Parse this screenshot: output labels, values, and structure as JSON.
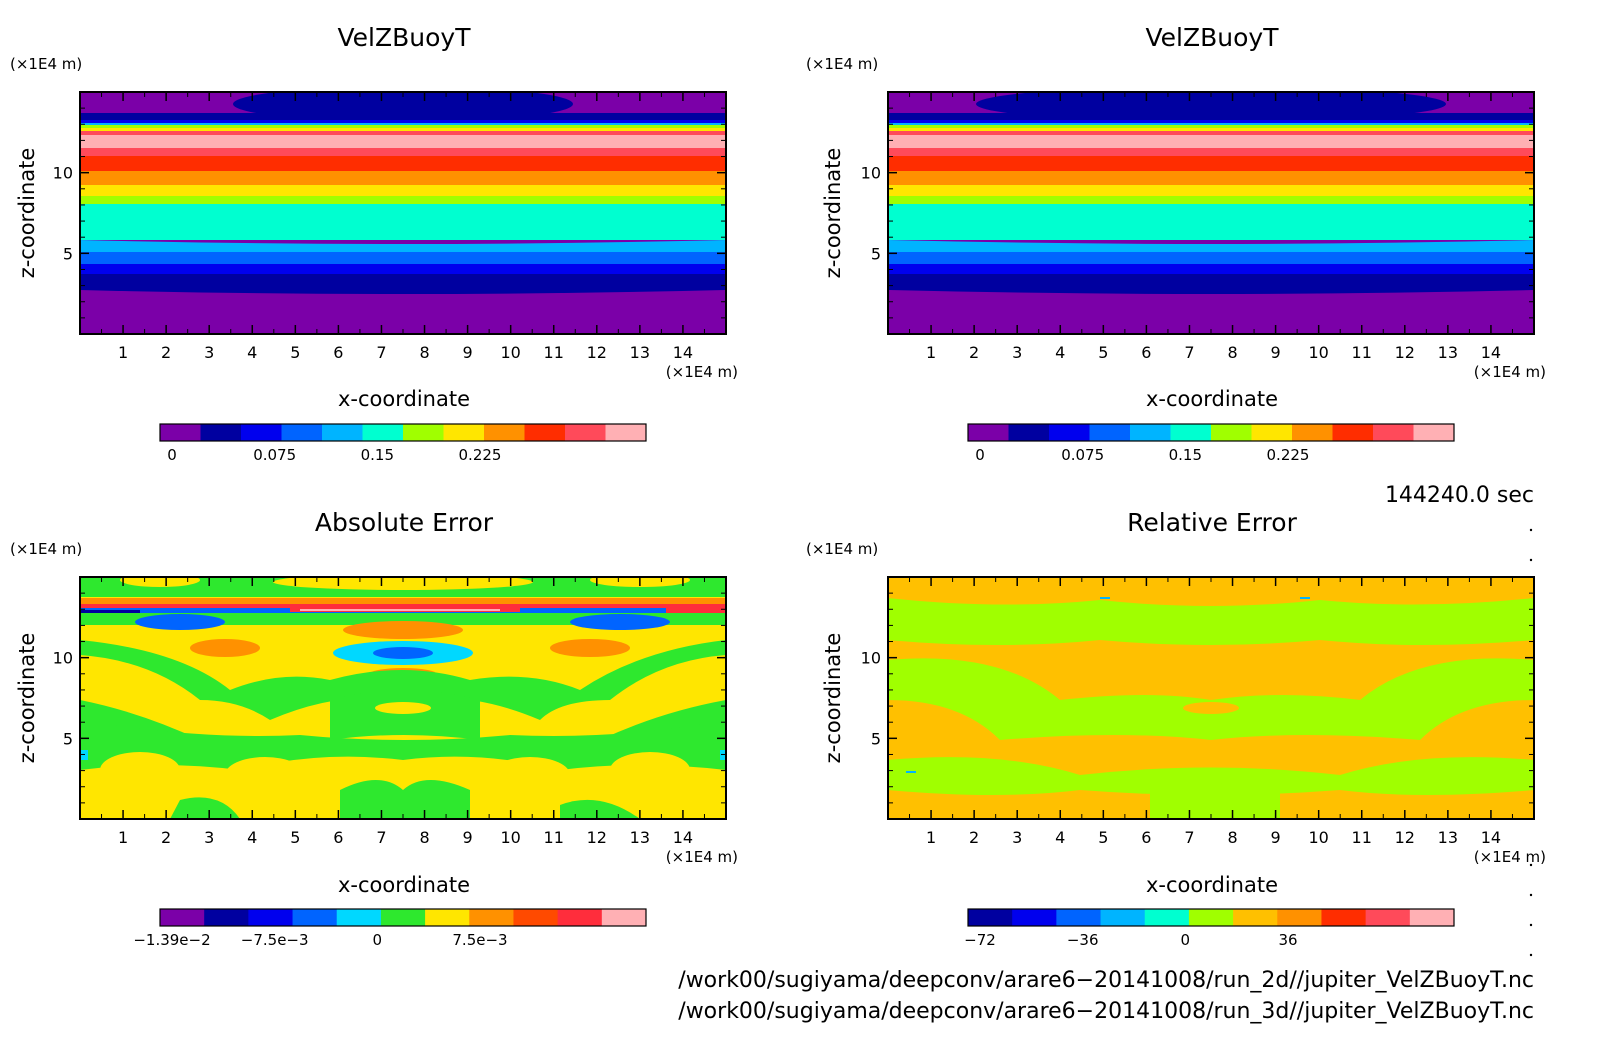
{
  "chart_data": [
    {
      "type": "heatmap",
      "title": "VelZBuoyT",
      "xlabel": "x-coordinate",
      "ylabel": "z-coordinate",
      "x_unit": "(×1E4 m)",
      "y_unit": "(×1E4 m)",
      "x_ticks": [
        "1",
        "2",
        "3",
        "4",
        "5",
        "6",
        "7",
        "8",
        "9",
        "10",
        "11",
        "12",
        "13",
        "14"
      ],
      "y_ticks": [
        "5",
        "10"
      ],
      "xlim": [
        0,
        15
      ],
      "ylim": [
        0,
        15
      ],
      "z_levels": [
        0,
        0.01875,
        0.0375,
        0.05625,
        0.075,
        0.09375,
        0.1125,
        0.13125,
        0.15,
        0.16875,
        0.1875,
        0.20625,
        0.225,
        0.24375,
        0.2625
      ],
      "colorbar_labels": [
        "0",
        "0.075",
        "0.15",
        "0.225"
      ],
      "colorbar_colors": [
        "#7b00a8",
        "#0000a0",
        "#0000ee",
        "#0064ff",
        "#00b4ff",
        "#00ffd0",
        "#a0ff00",
        "#ffe600",
        "#ff9100",
        "#ff2d00",
        "#ff4a5a",
        "#ffb0b4"
      ]
    },
    {
      "type": "heatmap",
      "title": "VelZBuoyT",
      "xlabel": "x-coordinate",
      "ylabel": "z-coordinate",
      "x_unit": "(×1E4 m)",
      "y_unit": "(×1E4 m)",
      "x_ticks": [
        "1",
        "2",
        "3",
        "4",
        "5",
        "6",
        "7",
        "8",
        "9",
        "10",
        "11",
        "12",
        "13",
        "14"
      ],
      "y_ticks": [
        "5",
        "10"
      ],
      "xlim": [
        0,
        15
      ],
      "ylim": [
        0,
        15
      ],
      "colorbar_labels": [
        "0",
        "0.075",
        "0.15",
        "0.225"
      ],
      "colorbar_colors": [
        "#7b00a8",
        "#0000a0",
        "#0000ee",
        "#0064ff",
        "#00b4ff",
        "#00ffd0",
        "#a0ff00",
        "#ffe600",
        "#ff9100",
        "#ff2d00",
        "#ff4a5a",
        "#ffb0b4"
      ]
    },
    {
      "type": "heatmap",
      "title": "Absolute Error",
      "xlabel": "x-coordinate",
      "ylabel": "z-coordinate",
      "x_unit": "(×1E4 m)",
      "y_unit": "(×1E4 m)",
      "x_ticks": [
        "1",
        "2",
        "3",
        "4",
        "5",
        "6",
        "7",
        "8",
        "9",
        "10",
        "11",
        "12",
        "13",
        "14"
      ],
      "y_ticks": [
        "5",
        "10"
      ],
      "xlim": [
        0,
        15
      ],
      "ylim": [
        0,
        15
      ],
      "colorbar_labels": [
        "−1.39e−2",
        "−7.5e−3",
        "0",
        "7.5e−3"
      ],
      "colorbar_colors": [
        "#7b00a8",
        "#0000a0",
        "#0000ee",
        "#0064ff",
        "#00d8ff",
        "#2ee82e",
        "#ffe600",
        "#ff9100",
        "#ff4a00",
        "#ff2d3c",
        "#ffb0b4"
      ]
    },
    {
      "type": "heatmap",
      "title": "Relative Error",
      "xlabel": "x-coordinate",
      "ylabel": "z-coordinate",
      "x_unit": "(×1E4 m)",
      "y_unit": "(×1E4 m)",
      "x_ticks": [
        "1",
        "2",
        "3",
        "4",
        "5",
        "6",
        "7",
        "8",
        "9",
        "10",
        "11",
        "12",
        "13",
        "14"
      ],
      "y_ticks": [
        "5",
        "10"
      ],
      "xlim": [
        0,
        15
      ],
      "ylim": [
        0,
        15
      ],
      "colorbar_labels": [
        "−72",
        "−36",
        "0",
        "36"
      ],
      "colorbar_colors": [
        "#0000a0",
        "#0000ee",
        "#0064ff",
        "#00b4ff",
        "#00ffd0",
        "#a0ff00",
        "#ffc000",
        "#ff9100",
        "#ff2d00",
        "#ff4a5a",
        "#ffb0b4"
      ]
    }
  ],
  "time_label": "144240.0 sec",
  "file_paths": [
    "/work00/sugiyama/deepconv/arare6−20141008/run_2d//jupiter_VelZBuoyT.nc",
    "/work00/sugiyama/deepconv/arare6−20141008/run_3d//jupiter_VelZBuoyT.nc"
  ]
}
